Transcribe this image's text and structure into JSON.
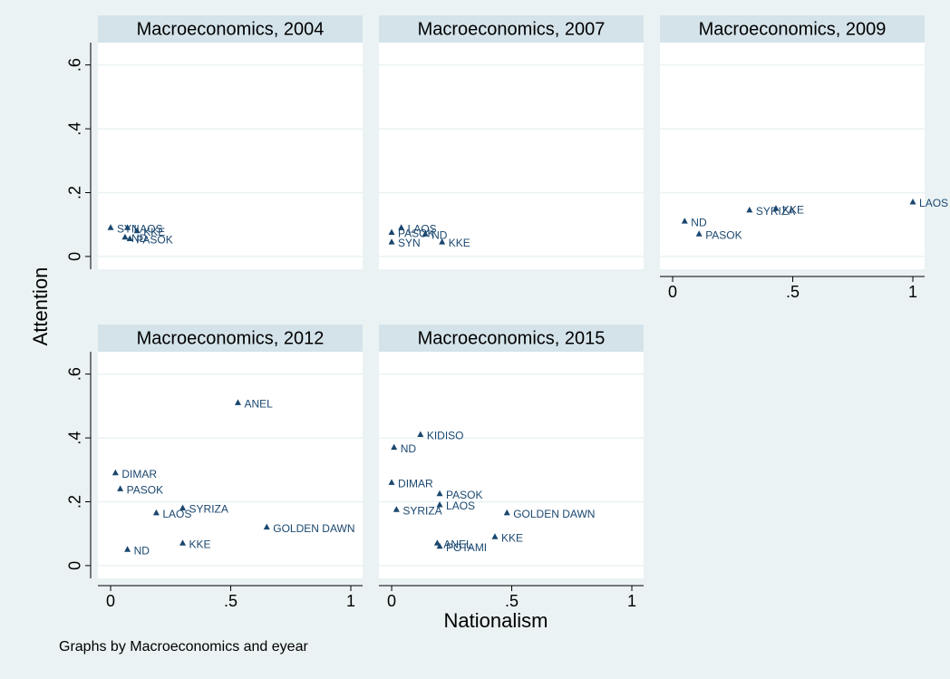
{
  "y_label": "Attention",
  "x_label": "Nationalism",
  "note": "Graphs by Macroeconomics and eyear",
  "chart_data": [
    {
      "type": "scatter",
      "title": "Macroeconomics, 2004",
      "color": "#1a476f",
      "labels": [
        "SYN",
        "LAOS",
        "KKE",
        "PASOK",
        "ND"
      ],
      "x": [
        0,
        0.07,
        0.11,
        0.08,
        0.06
      ],
      "y": [
        0.09,
        0.09,
        0.08,
        0.055,
        0.06
      ],
      "xlim": [
        -0.053,
        1.049
      ],
      "ylim": [
        -0.04,
        0.67
      ],
      "yticks": [
        0,
        {
          "value": 0.2,
          "label": ".2"
        },
        {
          "value": 0.4,
          "label": ".4"
        },
        {
          "value": 0.6,
          "label": ".6"
        }
      ],
      "grid": true
    },
    {
      "type": "scatter",
      "title": "Macroeconomics, 2007",
      "color": "#1a476f",
      "labels": [
        "LAOS",
        "PASOK",
        "ND",
        "SYN",
        "KKE"
      ],
      "x": [
        0.04,
        0,
        0.14,
        0,
        0.21
      ],
      "y": [
        0.09,
        0.075,
        0.07,
        0.045,
        0.045
      ],
      "xlim": [
        -0.053,
        1.049
      ],
      "ylim": [
        -0.04,
        0.67
      ],
      "gridticks": [
        0,
        0.2,
        0.4,
        0.6
      ],
      "grid": true
    },
    {
      "type": "scatter",
      "title": "Macroeconomics, 2009",
      "color": "#1a476f",
      "labels": [
        "ND",
        "PASOK",
        "SYRIZA",
        "KKE",
        "LAOS"
      ],
      "x": [
        0.05,
        0.11,
        0.32,
        0.43,
        1
      ],
      "y": [
        0.11,
        0.07,
        0.145,
        0.15,
        0.17
      ],
      "xlim": [
        -0.053,
        1.049
      ],
      "ylim": [
        -0.04,
        0.67
      ],
      "xticks": [
        0,
        {
          "value": 0.5,
          "label": ".5"
        },
        1
      ],
      "gridticks": [
        0,
        0.2,
        0.4,
        0.6
      ],
      "grid": true
    },
    {
      "type": "scatter",
      "title": "Macroeconomics, 2012",
      "color": "#1a476f",
      "labels": [
        "ANEL",
        "DIMAR",
        "PASOK",
        "LAOS",
        "SYRIZA",
        "GOLDEN DAWN",
        "KKE",
        "ND"
      ],
      "x": [
        0.53,
        0.02,
        0.04,
        0.19,
        0.3,
        0.65,
        0.3,
        0.07
      ],
      "y": [
        0.51,
        0.29,
        0.24,
        0.165,
        0.18,
        0.12,
        0.07,
        0.05
      ],
      "xlim": [
        -0.053,
        1.049
      ],
      "ylim": [
        -0.04,
        0.67
      ],
      "xticks": [
        0,
        {
          "value": 0.5,
          "label": ".5"
        },
        1
      ],
      "yticks": [
        0,
        {
          "value": 0.2,
          "label": ".2"
        },
        {
          "value": 0.4,
          "label": ".4"
        },
        {
          "value": 0.6,
          "label": ".6"
        }
      ],
      "grid": true
    },
    {
      "type": "scatter",
      "title": "Macroeconomics, 2015",
      "color": "#1a476f",
      "labels": [
        "KIDISO",
        "ND",
        "DIMAR",
        "PASOK",
        "LAOS",
        "SYRIZA",
        "GOLDEN DAWN",
        "KKE",
        "ANEL",
        "POTAMI"
      ],
      "x": [
        0.12,
        0.01,
        0,
        0.2,
        0.2,
        0.02,
        0.48,
        0.43,
        0.19,
        0.2
      ],
      "y": [
        0.41,
        0.37,
        0.26,
        0.225,
        0.19,
        0.175,
        0.165,
        0.09,
        0.07,
        0.06
      ],
      "xlim": [
        -0.053,
        1.049
      ],
      "ylim": [
        -0.04,
        0.67
      ],
      "xticks": [
        0,
        {
          "value": 0.5,
          "label": ".5"
        },
        1
      ],
      "gridticks": [
        0,
        0.2,
        0.4,
        0.6
      ],
      "grid": true
    }
  ]
}
